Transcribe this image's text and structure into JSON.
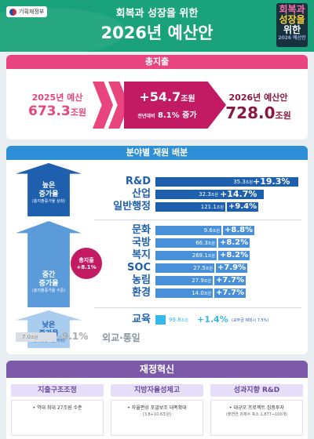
{
  "header": {
    "ministry": "기획재정부",
    "subtitle": "회복과 성장을 위한",
    "title": "2026년 예산안",
    "badge": [
      "회복과",
      "성장을",
      "위한",
      "2026 예산안"
    ]
  },
  "total": {
    "heading": "총지출",
    "prev_label": "2025년 예산",
    "prev_value": "673.3",
    "prev_unit": "조원",
    "increase_value": "+54.7",
    "increase_unit": "조원",
    "increase_sub_prefix": "전년대비",
    "increase_pct": "8.1% 증가",
    "next_label": "2026년 예산안",
    "next_value": "728.0",
    "next_unit": "조원"
  },
  "allocation": {
    "heading": "분야별 재원 배분",
    "levels": {
      "high": {
        "line1": "높은",
        "line2": "증가율",
        "caption": "(총지출증가율 상회)"
      },
      "mid": {
        "line1": "중간",
        "line2": "증가율",
        "caption": "(총지출증가율 수준)"
      },
      "low": {
        "line1": "낮은",
        "line2": "증가율",
        "caption": "(총지출증가율 하회)"
      }
    },
    "total_bubble": {
      "line1": "총지출",
      "line2": "+8.1%"
    },
    "rows": [
      {
        "label": "R&D",
        "amount": "35.3",
        "unit": "조원",
        "rate": "+19.3%",
        "fraction": 1.0,
        "color": "#1e5fae"
      },
      {
        "label": "산업",
        "amount": "32.3",
        "unit": "조원",
        "rate": "+14.7%",
        "fraction": 0.76,
        "color": "#1e5fae"
      },
      {
        "label": "일반행정",
        "amount": "121.1",
        "unit": "조원",
        "rate": "+9.4%",
        "fraction": 0.49,
        "color": "#1e5fae"
      },
      {
        "label": "문화",
        "amount": "9.6",
        "unit": "조원",
        "rate": "+8.8%",
        "fraction": 0.46,
        "color": "#4a90d9"
      },
      {
        "label": "국방",
        "amount": "66.3",
        "unit": "조원",
        "rate": "+8.2%",
        "fraction": 0.43,
        "color": "#4a90d9"
      },
      {
        "label": "복지",
        "amount": "269.1",
        "unit": "조원",
        "rate": "+8.2%",
        "fraction": 0.43,
        "color": "#4a90d9"
      },
      {
        "label": "SOC",
        "amount": "27.5",
        "unit": "조원",
        "rate": "+7.9%",
        "fraction": 0.41,
        "color": "#4a90d9"
      },
      {
        "label": "농림",
        "amount": "27.9",
        "unit": "조원",
        "rate": "+7.7%",
        "fraction": 0.4,
        "color": "#4a90d9"
      },
      {
        "label": "환경",
        "amount": "14.0",
        "unit": "조원",
        "rate": "+7.7%",
        "fraction": 0.4,
        "color": "#4a90d9"
      },
      {
        "label": "교육",
        "amount": "99.8",
        "unit": "조원",
        "rate": "+1.4%",
        "fraction": 0.07,
        "color": "#35b8e8",
        "note": "(교부금 제외시 7.5%)"
      }
    ],
    "decrease": {
      "amount": "7.0",
      "unit": "조원",
      "rate": "-9.1%",
      "label": "외교·통일"
    }
  },
  "reform": {
    "heading": "재정혁신",
    "columns": [
      {
        "title": "지출구조조정",
        "body": "• 역대 최대 27조원 수준",
        "sub": ""
      },
      {
        "title": "지방자율성제고",
        "body": "• 자율편성 포괄보조 대폭확대",
        "sub": "(3.8+10.6조원)"
      },
      {
        "title": "성과지향 R&D",
        "body": "• 대규모 프로젝트 집중투자",
        "sub": "(출연연 과제수 축소 1,877→100개)"
      }
    ]
  }
}
